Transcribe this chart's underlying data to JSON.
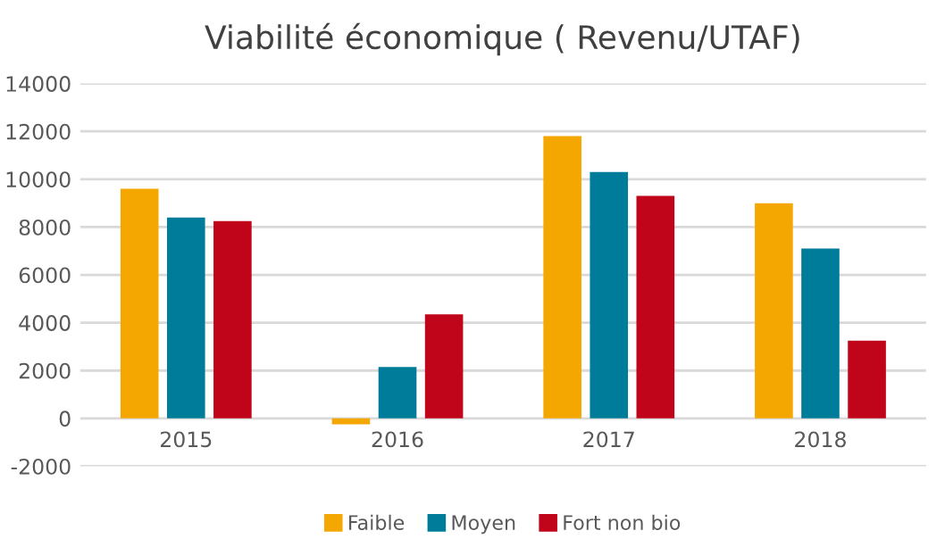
{
  "chart_data": {
    "type": "bar",
    "title": "Viabilité économique ( Revenu/UTAF)",
    "categories": [
      "2015",
      "2016",
      "2017",
      "2018"
    ],
    "series": [
      {
        "name": "Faible",
        "color": "#f4a700",
        "values": [
          9600,
          -250,
          11800,
          9000
        ]
      },
      {
        "name": "Moyen",
        "color": "#007c9b",
        "values": [
          8400,
          2150,
          10300,
          7100
        ]
      },
      {
        "name": "Fort non bio",
        "color": "#c0041a",
        "values": [
          8250,
          4350,
          9300,
          3250
        ]
      }
    ],
    "ylim": [
      -2000,
      14000
    ],
    "yticks": [
      -2000,
      0,
      2000,
      4000,
      6000,
      8000,
      10000,
      12000,
      14000
    ],
    "grid": "y",
    "legend": "bottom"
  }
}
